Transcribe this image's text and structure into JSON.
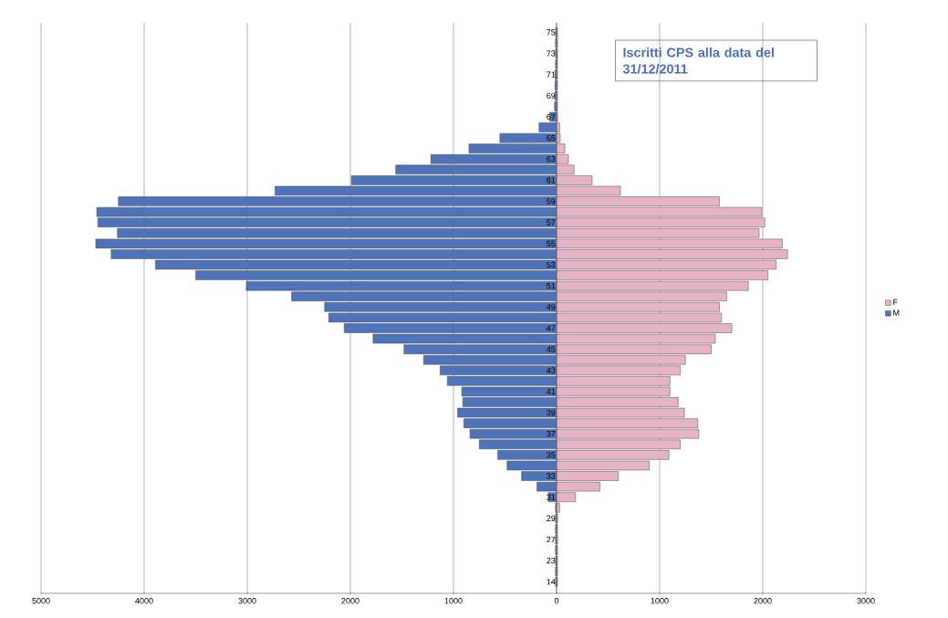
{
  "chart_data": {
    "type": "bar",
    "orientation": "horizontal",
    "stacked": true,
    "title": "Iscritti CPS alla data del 31/12/2011",
    "categories": [
      "75",
      null,
      "73",
      null,
      "71",
      null,
      "69",
      null,
      "67",
      null,
      "65",
      null,
      "63",
      null,
      "61",
      null,
      "59",
      null,
      "57",
      null,
      "55",
      null,
      "53",
      null,
      "51",
      null,
      "49",
      null,
      "47",
      null,
      "45",
      null,
      "43",
      null,
      "41",
      null,
      "39",
      null,
      "37",
      null,
      "35",
      null,
      "33",
      null,
      "31",
      null,
      "29",
      null,
      "27",
      null,
      "23",
      null,
      "14"
    ],
    "series": [
      {
        "name": "F",
        "color": "#e6b3c6",
        "values": [
          10,
          10,
          10,
          10,
          10,
          10,
          10,
          10,
          10,
          30,
          35,
          80,
          115,
          170,
          345,
          620,
          1580,
          1990,
          2020,
          1965,
          2190,
          2240,
          2130,
          2050,
          1860,
          1650,
          1580,
          1600,
          1700,
          1540,
          1500,
          1250,
          1200,
          1100,
          1100,
          1180,
          1240,
          1370,
          1380,
          1200,
          1090,
          900,
          600,
          420,
          185,
          30,
          10,
          10,
          10,
          10,
          10,
          10,
          10
        ]
      },
      {
        "name": "M",
        "color": "#4f73b9",
        "values": [
          -10,
          -10,
          -10,
          -10,
          -15,
          -15,
          -15,
          -20,
          -65,
          -170,
          -550,
          -850,
          -1220,
          -1560,
          -1990,
          -2730,
          -4250,
          -4460,
          -4450,
          -4260,
          -4470,
          -4320,
          -3890,
          -3500,
          -3010,
          -2570,
          -2250,
          -2210,
          -2060,
          -1780,
          -1480,
          -1290,
          -1130,
          -1060,
          -920,
          -910,
          -960,
          -900,
          -840,
          -750,
          -570,
          -480,
          -340,
          -190,
          -80,
          -10,
          -10,
          -10,
          -10,
          -10,
          -10,
          -10,
          -10
        ]
      }
    ],
    "xlim": [
      -5000,
      3000
    ],
    "xticks": [
      {
        "value": -5000,
        "label": "5000"
      },
      {
        "value": -4000,
        "label": "4000"
      },
      {
        "value": -3000,
        "label": "3000"
      },
      {
        "value": -2000,
        "label": "2000"
      },
      {
        "value": -1000,
        "label": "1000"
      },
      0,
      1000,
      2000,
      3000
    ],
    "grid": "x",
    "legend": "right"
  }
}
